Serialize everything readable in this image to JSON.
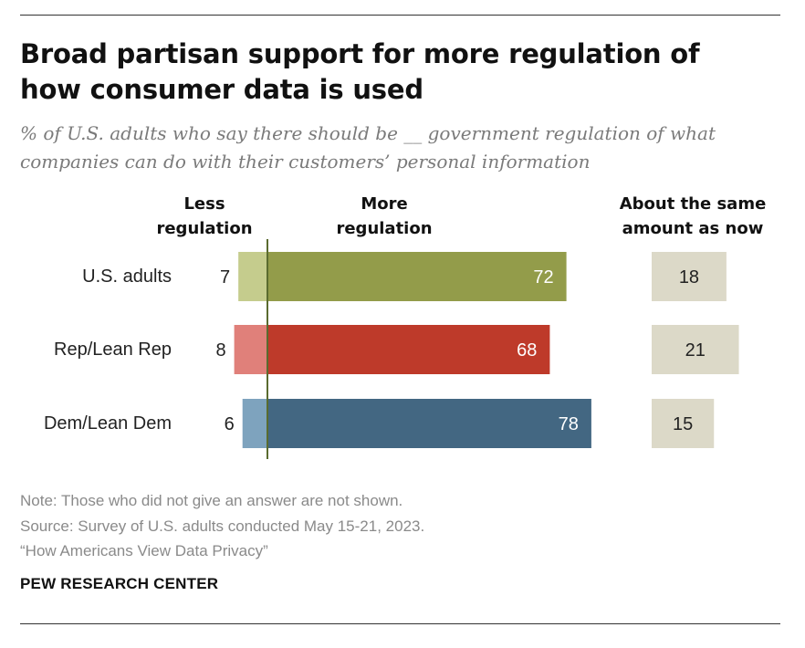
{
  "title": "Broad partisan support for more regulation of how consumer data is used",
  "subtitle": "% of U.S. adults who say there should be __ government regulation of what companies can do with their customers’ personal information",
  "headers": {
    "less": "Less regulation",
    "more": "More regulation",
    "same": "About the same amount as now"
  },
  "chart_data": {
    "type": "bar",
    "orientation": "diverging-horizontal",
    "categories": [
      "U.S. adults",
      "Rep/Lean Rep",
      "Dem/Lean Dem"
    ],
    "series": [
      {
        "name": "Less regulation",
        "values": [
          7,
          8,
          6
        ]
      },
      {
        "name": "More regulation",
        "values": [
          72,
          68,
          78
        ]
      },
      {
        "name": "About the same amount as now",
        "values": [
          18,
          21,
          15
        ]
      }
    ],
    "colors": {
      "less": [
        "#c5cc8d",
        "#e0807a",
        "#7ea3be"
      ],
      "more": [
        "#939c4a",
        "#be3a2a",
        "#436782"
      ],
      "same": "#dcd9c8",
      "axis": "#5a6b2f"
    }
  },
  "notes": {
    "note": "Note: Those who did not give an answer are not shown.",
    "source": "Source: Survey of U.S. adults conducted May 15-21, 2023.",
    "report": "“How Americans View Data Privacy”",
    "org": "PEW RESEARCH CENTER"
  }
}
